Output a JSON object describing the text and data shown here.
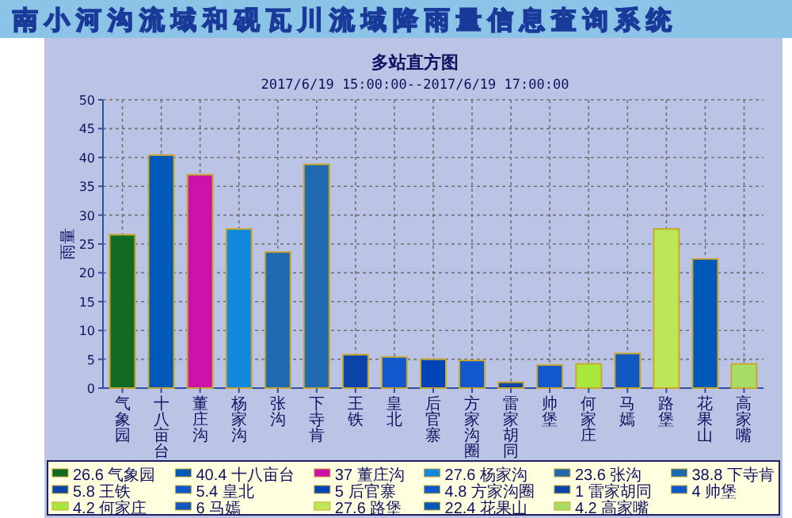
{
  "chart_data": {
    "type": "bar",
    "title": "多站直方图",
    "subtitle": "2017/6/19 15:00:00--2017/6/19 17:00:00",
    "ylabel": "雨量",
    "annotations": [
      "南小河沟流域和砚瓦川流域降雨量信息查询系统"
    ],
    "categories": [
      "气象园",
      "十八亩台",
      "董庄沟",
      "杨家沟",
      "张沟",
      "下寺肯",
      "王铁",
      "皇北",
      "后官寨",
      "方家沟圈",
      "雷家胡同",
      "帅堡",
      "何家庄",
      "马嫣",
      "路堡",
      "花果山",
      "高家嘴"
    ],
    "stacked": true,
    "series": [
      {
        "name": "26.6 气象园",
        "color": "#116b22",
        "values": [
          26.6,
          null,
          null,
          null,
          null,
          null,
          null,
          null,
          null,
          null,
          null,
          null,
          null,
          null,
          null,
          null,
          null
        ]
      },
      {
        "name": "40.4 十八亩台",
        "color": "#0058b8",
        "values": [
          null,
          40.4,
          null,
          null,
          null,
          null,
          null,
          null,
          null,
          null,
          null,
          null,
          null,
          null,
          null,
          null,
          null
        ]
      },
      {
        "name": "37 董庄沟",
        "color": "#cc12a8",
        "values": [
          null,
          null,
          37,
          null,
          null,
          null,
          null,
          null,
          null,
          null,
          null,
          null,
          null,
          null,
          null,
          null,
          null
        ]
      },
      {
        "name": "27.6 杨家沟",
        "color": "#1288dd",
        "values": [
          null,
          null,
          null,
          27.6,
          null,
          null,
          null,
          null,
          null,
          null,
          null,
          null,
          null,
          null,
          null,
          null,
          null
        ]
      },
      {
        "name": "23.6 张沟",
        "color": "#2068b0",
        "values": [
          null,
          null,
          null,
          null,
          23.6,
          null,
          null,
          null,
          null,
          null,
          null,
          null,
          null,
          null,
          null,
          null,
          null
        ]
      },
      {
        "name": "38.8 下寺肯",
        "color": "#2068b0",
        "values": [
          null,
          null,
          null,
          null,
          null,
          38.8,
          null,
          null,
          null,
          null,
          null,
          null,
          null,
          null,
          null,
          null,
          null
        ]
      },
      {
        "name": "5.8 王铁",
        "color": "#0a44a8",
        "values": [
          null,
          null,
          null,
          null,
          null,
          null,
          5.8,
          null,
          null,
          null,
          null,
          null,
          null,
          null,
          null,
          null,
          null
        ]
      },
      {
        "name": "5.4 皇北",
        "color": "#1058cc",
        "values": [
          null,
          null,
          null,
          null,
          null,
          null,
          null,
          5.4,
          null,
          null,
          null,
          null,
          null,
          null,
          null,
          null,
          null
        ]
      },
      {
        "name": "5 后官寨",
        "color": "#0044b8",
        "values": [
          null,
          null,
          null,
          null,
          null,
          null,
          null,
          null,
          5,
          null,
          null,
          null,
          null,
          null,
          null,
          null,
          null
        ]
      },
      {
        "name": "4.8 方家沟圈",
        "color": "#1058cc",
        "values": [
          null,
          null,
          null,
          null,
          null,
          null,
          null,
          null,
          null,
          4.8,
          null,
          null,
          null,
          null,
          null,
          null,
          null
        ]
      },
      {
        "name": "1 雷家胡同",
        "color": "#0a44a8",
        "values": [
          null,
          null,
          null,
          null,
          null,
          null,
          null,
          null,
          null,
          null,
          1,
          null,
          null,
          null,
          null,
          null,
          null
        ]
      },
      {
        "name": "4 帅堡",
        "color": "#1058cc",
        "values": [
          null,
          null,
          null,
          null,
          null,
          null,
          null,
          null,
          null,
          null,
          null,
          4,
          null,
          null,
          null,
          null,
          null
        ]
      },
      {
        "name": "4.2 何家庄",
        "color": "#a8e83c",
        "values": [
          null,
          null,
          null,
          null,
          null,
          null,
          null,
          null,
          null,
          null,
          null,
          null,
          4.2,
          null,
          null,
          null,
          null
        ]
      },
      {
        "name": "6 马嫣",
        "color": "#1058c0",
        "values": [
          null,
          null,
          null,
          null,
          null,
          null,
          null,
          null,
          null,
          null,
          null,
          null,
          null,
          6,
          null,
          null,
          null
        ]
      },
      {
        "name": "27.6 路堡",
        "color": "#bce858",
        "values": [
          null,
          null,
          null,
          null,
          null,
          null,
          null,
          null,
          null,
          null,
          null,
          null,
          null,
          null,
          27.6,
          null,
          null
        ]
      },
      {
        "name": "22.4 花果山",
        "color": "#0058b8",
        "values": [
          null,
          null,
          null,
          null,
          null,
          null,
          null,
          null,
          null,
          null,
          null,
          null,
          null,
          null,
          null,
          22.4,
          null
        ]
      },
      {
        "name": "4.2 高家嘴",
        "color": "#a8dc68",
        "values": [
          null,
          null,
          null,
          null,
          null,
          null,
          null,
          null,
          null,
          null,
          null,
          null,
          null,
          null,
          null,
          null,
          4.2
        ]
      }
    ],
    "ylim": [
      0,
      50
    ],
    "yticks": [
      0,
      5,
      10,
      15,
      20,
      25,
      30,
      35,
      40,
      45,
      50
    ],
    "grid": true,
    "legend": "bottom"
  }
}
